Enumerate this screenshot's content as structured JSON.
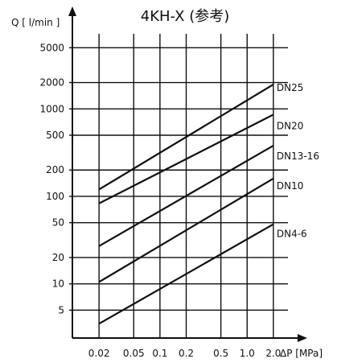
{
  "chart_data": {
    "type": "line",
    "title": "4KH-X (参考)",
    "ylabel": "Q [ l/min ]",
    "xlabel": "ΔP [MPa]",
    "x_scale": "log",
    "y_scale": "log",
    "xlim": [
      0.011,
      3.2
    ],
    "ylim": [
      2.4,
      12000
    ],
    "x_ticks": [
      0.02,
      0.05,
      0.1,
      0.2,
      0.5,
      1.0,
      2.0
    ],
    "x_tick_labels": [
      "0.02",
      "0.05",
      "0.1",
      "0.2",
      "0.5",
      "1.0",
      "2.0"
    ],
    "y_ticks": [
      5,
      10,
      20,
      50,
      100,
      200,
      500,
      1000,
      2000,
      5000
    ],
    "y_tick_labels": [
      "5",
      "10",
      "20",
      "50",
      "100",
      "200",
      "500",
      "1000",
      "2000",
      "5000"
    ],
    "grid": true,
    "series": [
      {
        "name": "DN25",
        "x": [
          0.02,
          2.0
        ],
        "y": [
          120,
          1900
        ]
      },
      {
        "name": "DN20",
        "x": [
          0.02,
          2.0
        ],
        "y": [
          83,
          860
        ]
      },
      {
        "name": "DN13-16",
        "x": [
          0.02,
          2.0
        ],
        "y": [
          27,
          380
        ]
      },
      {
        "name": "DN10",
        "x": [
          0.02,
          2.0
        ],
        "y": [
          10.5,
          160
        ]
      },
      {
        "name": "DN4-6",
        "x": [
          0.02,
          2.0
        ],
        "y": [
          3.5,
          48
        ]
      }
    ]
  }
}
